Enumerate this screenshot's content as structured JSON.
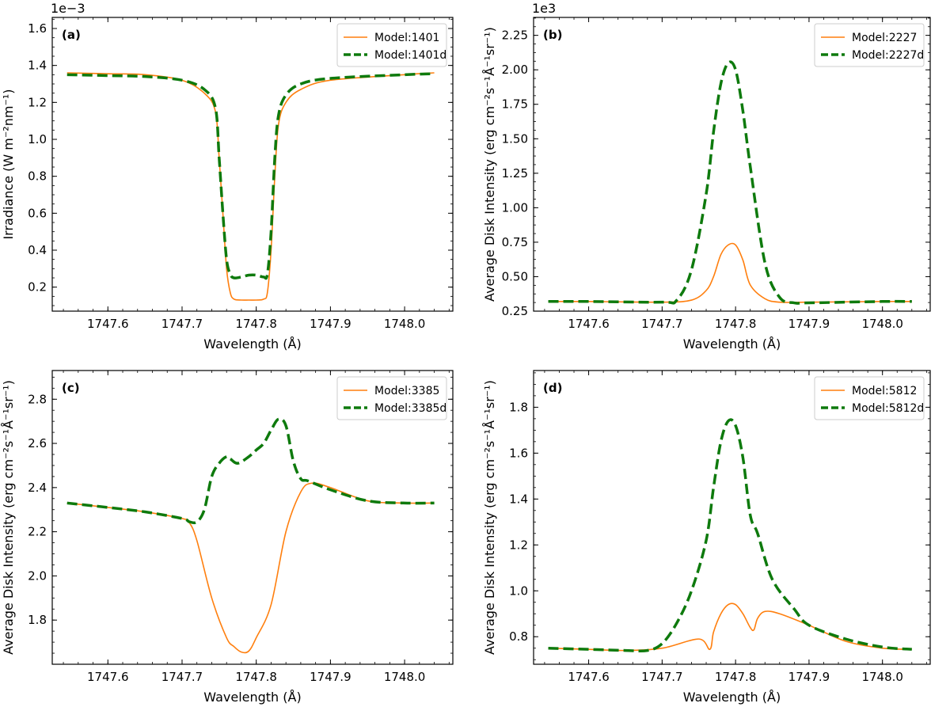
{
  "colors": {
    "model": "#ff7f0e",
    "model_d": "#0e7a0d"
  },
  "chart_data": [
    {
      "type": "line",
      "panel_label": "(a)",
      "xlabel": "Wavelength (Å)",
      "ylabel": "Irradiance (W m⁻²nm⁻¹)",
      "exponent_label": "1e−3",
      "xlim": [
        1747.525,
        1748.065
      ],
      "ylim": [
        0.07,
        1.66
      ],
      "xticks": [
        1747.6,
        1747.7,
        1747.8,
        1747.9,
        1748.0
      ],
      "xtick_labels": [
        "1747.6",
        "1747.7",
        "1747.8",
        "1747.9",
        "1748.0"
      ],
      "yticks": [
        0.2,
        0.4,
        0.6,
        0.8,
        1.0,
        1.2,
        1.4,
        1.6
      ],
      "ytick_labels": [
        "0.2",
        "0.4",
        "0.6",
        "0.8",
        "1.0",
        "1.2",
        "1.4",
        "1.6"
      ],
      "legend_position": "top-right",
      "series": [
        {
          "name": "Model:1401",
          "style": "solid",
          "x": [
            1747.545,
            1747.6,
            1747.65,
            1747.7,
            1747.73,
            1747.745,
            1747.75,
            1747.755,
            1747.76,
            1747.765,
            1747.77,
            1747.78,
            1747.79,
            1747.8,
            1747.81,
            1747.815,
            1747.82,
            1747.825,
            1747.83,
            1747.84,
            1747.86,
            1747.9,
            1748.0,
            1748.04
          ],
          "y": [
            1.36,
            1.355,
            1.35,
            1.32,
            1.25,
            1.15,
            0.9,
            0.6,
            0.3,
            0.17,
            0.135,
            0.13,
            0.13,
            0.13,
            0.135,
            0.17,
            0.4,
            0.8,
            1.08,
            1.2,
            1.27,
            1.32,
            1.35,
            1.36
          ]
        },
        {
          "name": "Model:1401d",
          "style": "dashed",
          "x": [
            1747.545,
            1747.6,
            1747.65,
            1747.7,
            1747.73,
            1747.745,
            1747.75,
            1747.755,
            1747.76,
            1747.765,
            1747.77,
            1747.78,
            1747.79,
            1747.8,
            1747.81,
            1747.815,
            1747.82,
            1747.825,
            1747.83,
            1747.84,
            1747.86,
            1747.9,
            1748.0,
            1748.04
          ],
          "y": [
            1.35,
            1.345,
            1.34,
            1.32,
            1.27,
            1.17,
            0.9,
            0.6,
            0.35,
            0.27,
            0.25,
            0.255,
            0.265,
            0.265,
            0.255,
            0.27,
            0.5,
            0.9,
            1.13,
            1.24,
            1.3,
            1.33,
            1.35,
            1.355
          ]
        }
      ]
    },
    {
      "type": "line",
      "panel_label": "(b)",
      "xlabel": "Wavelength (Å)",
      "ylabel": "Average Disk Intensity (erg cm⁻²s⁻¹Å⁻¹sr⁻¹)",
      "exponent_label": "1e3",
      "xlim": [
        1747.525,
        1748.065
      ],
      "ylim": [
        0.25,
        2.38
      ],
      "xticks": [
        1747.6,
        1747.7,
        1747.8,
        1747.9,
        1748.0
      ],
      "xtick_labels": [
        "1747.6",
        "1747.7",
        "1747.8",
        "1747.9",
        "1748.0"
      ],
      "yticks": [
        0.25,
        0.5,
        0.75,
        1.0,
        1.25,
        1.5,
        1.75,
        2.0,
        2.25
      ],
      "ytick_labels": [
        "0.25",
        "0.50",
        "0.75",
        "1.00",
        "1.25",
        "1.50",
        "1.75",
        "2.00",
        "2.25"
      ],
      "legend_position": "top-right",
      "series": [
        {
          "name": "Model:2227",
          "style": "solid",
          "x": [
            1747.545,
            1747.6,
            1747.7,
            1747.74,
            1747.76,
            1747.77,
            1747.78,
            1747.79,
            1747.8,
            1747.81,
            1747.82,
            1747.84,
            1747.86,
            1747.9,
            1748.0,
            1748.04
          ],
          "y": [
            0.32,
            0.32,
            0.315,
            0.33,
            0.4,
            0.5,
            0.66,
            0.73,
            0.73,
            0.62,
            0.44,
            0.34,
            0.315,
            0.315,
            0.32,
            0.32
          ]
        },
        {
          "name": "Model:2227d",
          "style": "dashed",
          "x": [
            1747.545,
            1747.6,
            1747.7,
            1747.72,
            1747.74,
            1747.76,
            1747.77,
            1747.78,
            1747.79,
            1747.8,
            1747.81,
            1747.82,
            1747.84,
            1747.86,
            1747.88,
            1747.9,
            1748.0,
            1748.04
          ],
          "y": [
            0.32,
            0.32,
            0.315,
            0.33,
            0.55,
            1.1,
            1.55,
            1.9,
            2.05,
            2.0,
            1.7,
            1.3,
            0.6,
            0.35,
            0.31,
            0.31,
            0.32,
            0.32
          ]
        }
      ]
    },
    {
      "type": "line",
      "panel_label": "(c)",
      "xlabel": "Wavelength (Å)",
      "ylabel": "Average Disk Intensity (erg cm⁻²s⁻¹Å⁻¹sr⁻¹)",
      "exponent_label": "",
      "xlim": [
        1747.525,
        1748.065
      ],
      "ylim": [
        1.6,
        2.93
      ],
      "xticks": [
        1747.6,
        1747.7,
        1747.8,
        1747.9,
        1748.0
      ],
      "xtick_labels": [
        "1747.6",
        "1747.7",
        "1747.8",
        "1747.9",
        "1748.0"
      ],
      "yticks": [
        1.8,
        2.0,
        2.2,
        2.4,
        2.6,
        2.8
      ],
      "ytick_labels": [
        "1.8",
        "2.0",
        "2.2",
        "2.4",
        "2.6",
        "2.8"
      ],
      "legend_position": "top-right",
      "series": [
        {
          "name": "Model:3385",
          "style": "solid",
          "x": [
            1747.545,
            1747.6,
            1747.65,
            1747.7,
            1747.71,
            1747.72,
            1747.74,
            1747.76,
            1747.77,
            1747.78,
            1747.79,
            1747.8,
            1747.82,
            1747.84,
            1747.86,
            1747.875,
            1747.9,
            1747.95,
            1748.0,
            1748.04
          ],
          "y": [
            2.33,
            2.31,
            2.29,
            2.26,
            2.24,
            2.16,
            1.9,
            1.72,
            1.68,
            1.655,
            1.66,
            1.72,
            1.87,
            2.2,
            2.38,
            2.42,
            2.4,
            2.34,
            2.33,
            2.33
          ]
        },
        {
          "name": "Model:3385d",
          "style": "dashed",
          "x": [
            1747.545,
            1747.6,
            1747.65,
            1747.7,
            1747.71,
            1747.72,
            1747.73,
            1747.74,
            1747.75,
            1747.76,
            1747.765,
            1747.775,
            1747.79,
            1747.8,
            1747.81,
            1747.82,
            1747.83,
            1747.84,
            1747.85,
            1747.86,
            1747.87,
            1747.9,
            1747.95,
            1748.0,
            1748.04
          ],
          "y": [
            2.33,
            2.31,
            2.29,
            2.26,
            2.245,
            2.245,
            2.3,
            2.45,
            2.51,
            2.54,
            2.53,
            2.51,
            2.54,
            2.57,
            2.6,
            2.66,
            2.71,
            2.68,
            2.52,
            2.44,
            2.43,
            2.39,
            2.34,
            2.33,
            2.33
          ]
        }
      ]
    },
    {
      "type": "line",
      "panel_label": "(d)",
      "xlabel": "Wavelength (Å)",
      "ylabel": "Average Disk Intensity (erg cm⁻²s⁻¹Å⁻¹sr⁻¹)",
      "exponent_label": "",
      "xlim": [
        1747.525,
        1748.065
      ],
      "ylim": [
        0.68,
        1.96
      ],
      "xticks": [
        1747.6,
        1747.7,
        1747.8,
        1747.9,
        1748.0
      ],
      "xtick_labels": [
        "1747.6",
        "1747.7",
        "1747.8",
        "1747.9",
        "1748.0"
      ],
      "yticks": [
        0.8,
        1.0,
        1.2,
        1.4,
        1.6,
        1.8
      ],
      "ytick_labels": [
        "0.8",
        "1.0",
        "1.2",
        "1.4",
        "1.6",
        "1.8"
      ],
      "legend_position": "top-right",
      "series": [
        {
          "name": "Model:5812",
          "style": "solid",
          "x": [
            1747.545,
            1747.6,
            1747.65,
            1747.7,
            1747.75,
            1747.765,
            1747.77,
            1747.78,
            1747.79,
            1747.8,
            1747.81,
            1747.82,
            1747.825,
            1747.83,
            1747.84,
            1747.86,
            1747.9,
            1747.95,
            1748.0,
            1748.04
          ],
          "y": [
            0.75,
            0.745,
            0.74,
            0.75,
            0.79,
            0.745,
            0.82,
            0.9,
            0.94,
            0.94,
            0.9,
            0.84,
            0.83,
            0.88,
            0.91,
            0.9,
            0.85,
            0.78,
            0.75,
            0.745
          ]
        },
        {
          "name": "Model:5812d",
          "style": "dashed",
          "x": [
            1747.545,
            1747.6,
            1747.65,
            1747.68,
            1747.7,
            1747.72,
            1747.74,
            1747.76,
            1747.77,
            1747.78,
            1747.79,
            1747.8,
            1747.81,
            1747.82,
            1747.83,
            1747.85,
            1747.88,
            1747.9,
            1747.95,
            1748.0,
            1748.04
          ],
          "y": [
            0.75,
            0.745,
            0.74,
            0.74,
            0.77,
            0.86,
            1.0,
            1.22,
            1.45,
            1.65,
            1.74,
            1.72,
            1.58,
            1.33,
            1.25,
            1.05,
            0.92,
            0.85,
            0.79,
            0.755,
            0.745
          ]
        }
      ]
    }
  ]
}
